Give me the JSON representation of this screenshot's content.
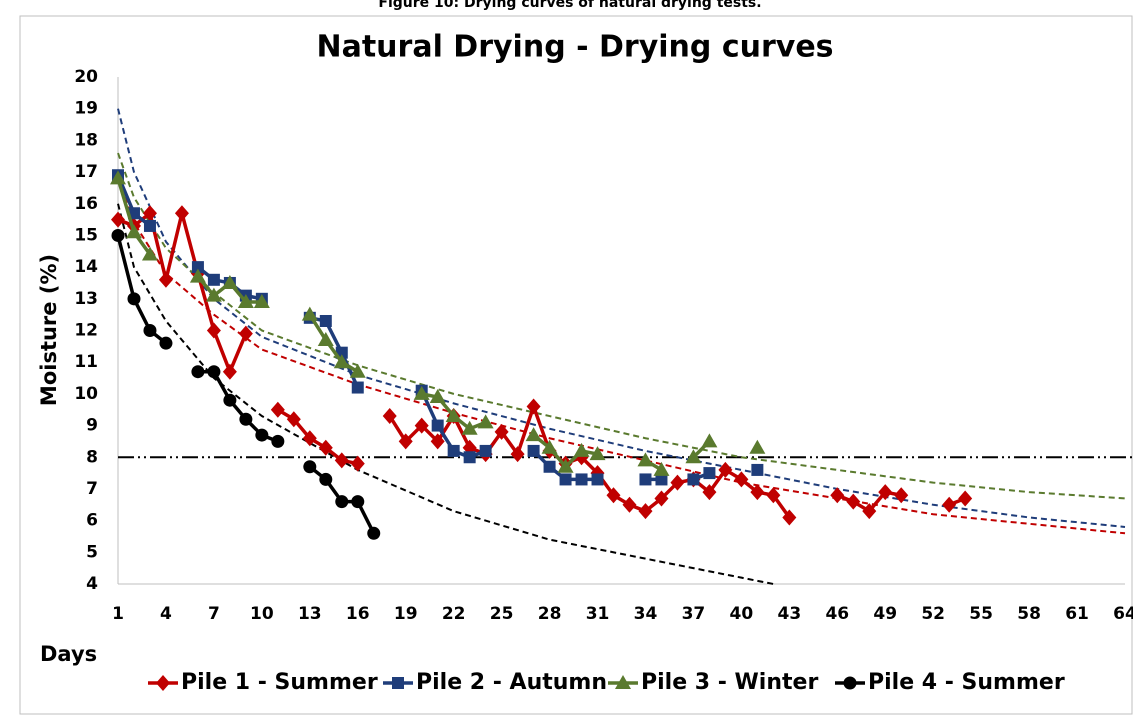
{
  "chart_data": {
    "type": "line",
    "caption": "Figure 10: Drying curves of natural drying tests.",
    "title": "Natural Drying - Drying curves",
    "y_label": "Moisture (%)",
    "x_label": "Days",
    "xlim": [
      1,
      64
    ],
    "xticks": [
      1,
      4,
      7,
      10,
      13,
      16,
      19,
      22,
      25,
      28,
      31,
      34,
      37,
      40,
      43,
      46,
      49,
      52,
      55,
      58,
      61,
      64
    ],
    "ylim": [
      4,
      20
    ],
    "yticks": [
      4,
      5,
      6,
      7,
      8,
      9,
      10,
      11,
      12,
      13,
      14,
      15,
      16,
      17,
      18,
      19,
      20
    ],
    "hline": 8,
    "series": [
      {
        "name": "Pile 1 - Summer",
        "color": "#c00000",
        "marker": "diamond",
        "x": [
          1,
          2,
          3,
          4,
          5,
          6,
          7,
          8,
          9,
          10,
          11,
          12,
          13,
          14,
          15,
          16,
          17,
          18,
          19,
          20,
          21,
          22,
          23,
          24,
          25,
          26,
          27,
          28,
          29,
          30,
          31,
          32,
          33,
          34,
          35,
          36,
          37,
          38,
          39,
          40,
          41,
          42,
          43,
          44,
          46,
          47,
          48,
          49,
          50,
          51,
          53,
          54
        ],
        "values": [
          15.5,
          15.3,
          15.7,
          13.6,
          15.7,
          13.8,
          12.0,
          10.7,
          11.9,
          null,
          9.5,
          9.2,
          8.6,
          8.3,
          7.9,
          7.8,
          null,
          9.3,
          8.5,
          9.0,
          8.5,
          9.3,
          8.3,
          8.1,
          8.8,
          8.1,
          9.6,
          8.2,
          7.8,
          8.0,
          7.5,
          6.8,
          6.5,
          6.3,
          6.7,
          7.2,
          7.3,
          6.9,
          7.6,
          7.3,
          6.9,
          6.8,
          6.1,
          null,
          6.8,
          6.6,
          6.3,
          6.9,
          6.8,
          null,
          6.5,
          6.7
        ]
      },
      {
        "name": "Pile 2 - Autumn",
        "color": "#1f3d7a",
        "marker": "square",
        "x": [
          1,
          2,
          3,
          4,
          6,
          7,
          8,
          9,
          10,
          11,
          13,
          14,
          15,
          16,
          17,
          20,
          21,
          22,
          23,
          24,
          25,
          27,
          28,
          29,
          30,
          31,
          32,
          34,
          35,
          36,
          37,
          38,
          39,
          41
        ],
        "values": [
          16.9,
          15.7,
          15.3,
          null,
          14.0,
          13.6,
          13.5,
          13.1,
          13.0,
          null,
          12.4,
          12.3,
          11.3,
          10.2,
          null,
          10.1,
          9.0,
          8.2,
          8.0,
          8.2,
          null,
          8.2,
          7.7,
          7.3,
          7.3,
          7.3,
          null,
          7.3,
          7.3,
          null,
          7.3,
          7.5,
          null,
          7.6
        ]
      },
      {
        "name": "Pile 3 - Winter",
        "color": "#5a7a2e",
        "marker": "triangle",
        "x": [
          1,
          2,
          3,
          4,
          6,
          7,
          8,
          9,
          10,
          11,
          13,
          14,
          15,
          16,
          17,
          20,
          21,
          22,
          23,
          24,
          25,
          27,
          28,
          29,
          30,
          31,
          32,
          34,
          35,
          36,
          37,
          38,
          39,
          41
        ],
        "values": [
          16.8,
          15.1,
          14.4,
          null,
          13.7,
          13.1,
          13.5,
          12.9,
          12.9,
          null,
          12.5,
          11.7,
          11.0,
          10.7,
          null,
          10.0,
          9.9,
          9.3,
          8.9,
          9.1,
          null,
          8.7,
          8.3,
          7.7,
          8.2,
          8.1,
          null,
          7.9,
          7.6,
          null,
          8.0,
          8.5,
          null,
          8.3
        ]
      },
      {
        "name": "Pile 4 - Summer",
        "color": "#000000",
        "marker": "circle",
        "x": [
          1,
          2,
          3,
          4,
          5,
          6,
          7,
          8,
          9,
          10,
          11,
          12,
          13,
          14,
          15,
          16,
          17
        ],
        "values": [
          15.0,
          13.0,
          12.0,
          11.6,
          null,
          10.7,
          10.7,
          9.8,
          9.2,
          8.7,
          8.5,
          null,
          7.7,
          7.3,
          6.6,
          6.6,
          5.6
        ]
      }
    ],
    "trendlines": [
      {
        "color": "#c00000",
        "x": [
          1,
          2,
          4,
          7,
          10,
          16,
          22,
          28,
          34,
          40,
          46,
          52,
          58,
          64
        ],
        "values": [
          16.8,
          15.4,
          13.8,
          12.5,
          11.4,
          10.3,
          9.4,
          8.6,
          7.9,
          7.2,
          6.7,
          6.2,
          5.9,
          5.6
        ]
      },
      {
        "color": "#1f3d7a",
        "x": [
          1,
          2,
          4,
          7,
          10,
          16,
          22,
          28,
          34,
          40,
          46,
          52,
          58,
          64
        ],
        "values": [
          19.0,
          17.0,
          14.8,
          13.0,
          11.8,
          10.6,
          9.7,
          8.9,
          8.2,
          7.6,
          7.0,
          6.5,
          6.1,
          5.8
        ]
      },
      {
        "color": "#5a7a2e",
        "x": [
          1,
          2,
          4,
          7,
          10,
          16,
          22,
          28,
          34,
          40,
          46,
          52,
          58,
          64
        ],
        "values": [
          17.6,
          16.2,
          14.6,
          13.2,
          12.0,
          10.9,
          10.0,
          9.3,
          8.6,
          8.0,
          7.6,
          7.2,
          6.9,
          6.7
        ]
      },
      {
        "color": "#000000",
        "x": [
          1,
          2,
          4,
          7,
          10,
          16,
          22,
          28,
          34,
          40,
          42
        ],
        "values": [
          16.0,
          14.0,
          12.3,
          10.5,
          9.3,
          7.6,
          6.3,
          5.4,
          4.8,
          4.2,
          4.0
        ]
      }
    ]
  }
}
